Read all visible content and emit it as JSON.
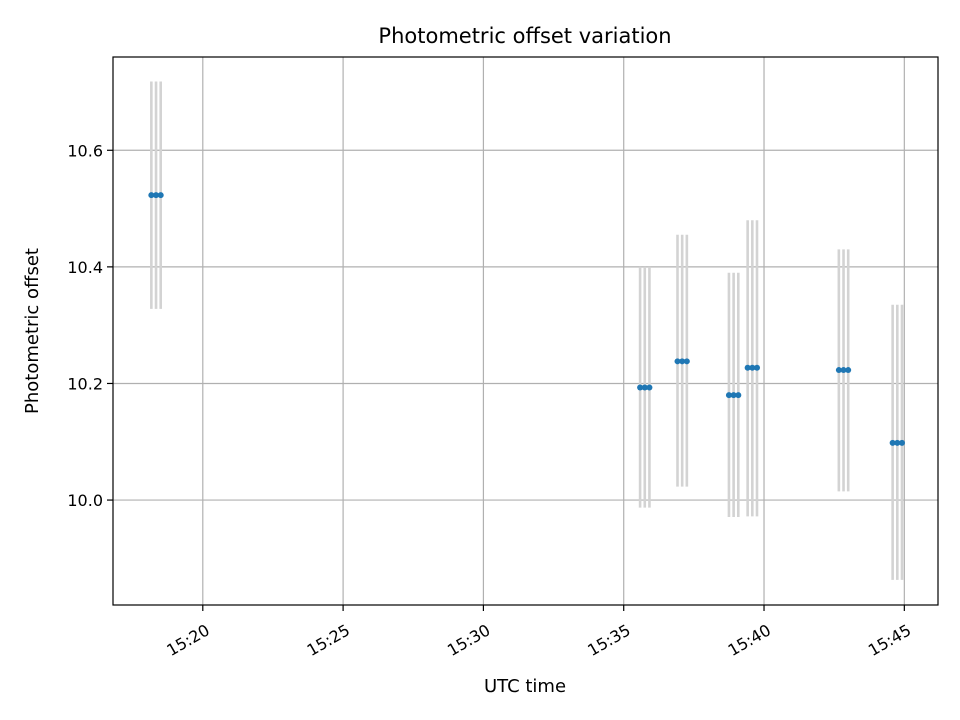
{
  "chart_data": {
    "type": "scatter",
    "title": "Photometric offset variation",
    "xlabel": "UTC time",
    "ylabel": "Photometric offset",
    "x_ticks": [
      "15:20",
      "15:25",
      "15:30",
      "15:35",
      "15:40",
      "15:45"
    ],
    "y_ticks": [
      "10.0",
      "10.2",
      "10.4",
      "10.6"
    ],
    "xlim": [
      "15:16:48",
      "15:46:12"
    ],
    "ylim": [
      9.82,
      10.76
    ],
    "grid": true,
    "legend": "none",
    "colors": {
      "point": "#1f77b4",
      "errorbar": "#d3d3d3",
      "grid": "#b0b0b0"
    },
    "groups": [
      {
        "times": [
          "15:18:10",
          "15:18:20",
          "15:18:30"
        ],
        "value": 10.523,
        "low": 10.328,
        "high": 10.718
      },
      {
        "times": [
          "15:35:35",
          "15:35:45",
          "15:35:55"
        ],
        "value": 10.193,
        "low": 9.987,
        "high": 10.4
      },
      {
        "times": [
          "15:36:55",
          "15:37:05",
          "15:37:15"
        ],
        "value": 10.238,
        "low": 10.023,
        "high": 10.455
      },
      {
        "times": [
          "15:38:45",
          "15:38:55",
          "15:39:05"
        ],
        "value": 10.18,
        "low": 9.971,
        "high": 10.39
      },
      {
        "times": [
          "15:39:25",
          "15:39:35",
          "15:39:45"
        ],
        "value": 10.227,
        "low": 9.972,
        "high": 10.48
      },
      {
        "times": [
          "15:42:40",
          "15:42:50",
          "15:43:00"
        ],
        "value": 10.223,
        "low": 10.015,
        "high": 10.43
      },
      {
        "times": [
          "15:44:35",
          "15:44:45",
          "15:44:55"
        ],
        "value": 10.098,
        "low": 9.863,
        "high": 10.335
      }
    ]
  }
}
